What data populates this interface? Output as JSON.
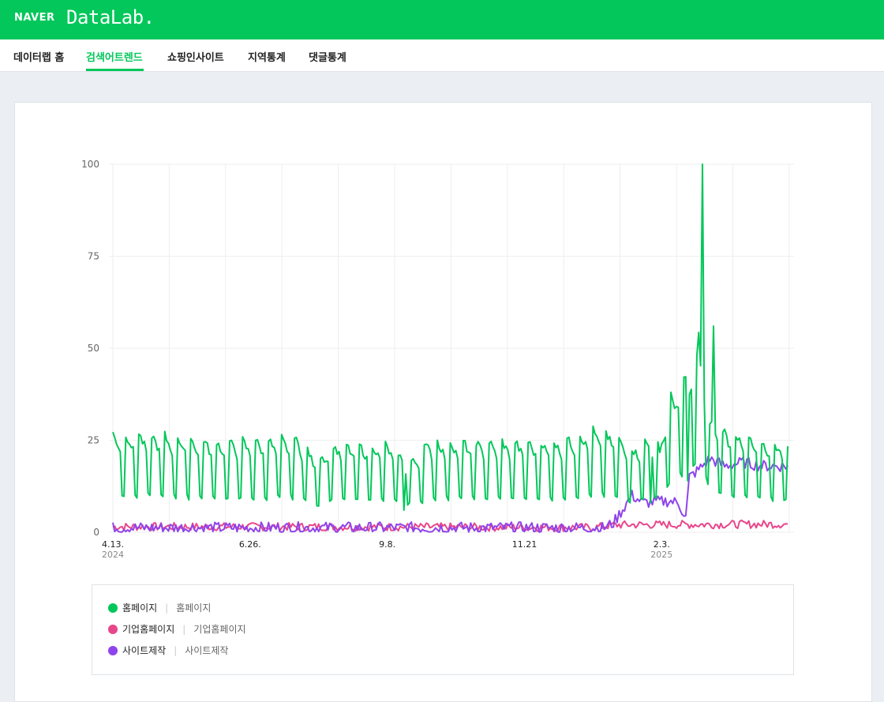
{
  "header": {
    "brand": "NAVER",
    "product": "DataLab."
  },
  "nav": {
    "items": [
      {
        "label": "데이터랩 홈"
      },
      {
        "label": "검색어트렌드"
      },
      {
        "label": "쇼핑인사이트"
      },
      {
        "label": "지역통계"
      },
      {
        "label": "댓글통계"
      }
    ],
    "active_index": 1
  },
  "colors": {
    "green": "#03c75a",
    "pink": "#e8468b",
    "purple": "#8f43ec",
    "grid": "#eeeeee"
  },
  "legend": [
    {
      "name": "홈페이지",
      "keywords": "홈페이지",
      "color": "#03c75a"
    },
    {
      "name": "기업홈페이지",
      "keywords": "기업홈페이지",
      "color": "#e8468b"
    },
    {
      "name": "사이트제작",
      "keywords": "사이트제작",
      "color": "#8f43ec"
    }
  ],
  "chart_data": {
    "type": "line",
    "x_start": "2024-04-13",
    "x_end": "2025-04-12",
    "days": 365,
    "ylim": [
      0,
      100
    ],
    "yticks": [
      0,
      25,
      50,
      75,
      100
    ],
    "ytick_labels": [
      "0",
      "25",
      "50",
      "75",
      "100"
    ],
    "xticks": [
      {
        "day": 0,
        "label": "4.13.",
        "year": "2024"
      },
      {
        "day": 74,
        "label": "6.26.",
        "year": ""
      },
      {
        "day": 148,
        "label": "9.8.",
        "year": ""
      },
      {
        "day": 222,
        "label": "11.21",
        "year": ""
      },
      {
        "day": 296,
        "label": "2.3.",
        "year": "2025"
      }
    ],
    "series": [
      {
        "name": "홈페이지",
        "color": "#03c75a",
        "weekly_pattern": [
          1.0,
          0.96,
          0.92,
          0.88,
          0.83,
          0.38,
          0.36
        ],
        "weekly_base": [
          [
            0,
            27
          ],
          [
            18,
            27
          ],
          [
            40,
            26
          ],
          [
            60,
            25
          ],
          [
            100,
            26
          ],
          [
            110,
            20
          ],
          [
            118,
            24
          ],
          [
            150,
            24
          ],
          [
            160,
            19
          ],
          [
            170,
            25
          ],
          [
            220,
            25
          ],
          [
            240,
            25
          ],
          [
            260,
            28
          ],
          [
            270,
            27
          ],
          [
            280,
            23
          ],
          [
            290,
            26
          ],
          [
            295,
            24
          ],
          [
            300,
            36
          ],
          [
            312,
            46
          ],
          [
            316,
            55
          ],
          [
            322,
            31
          ],
          [
            332,
            28
          ],
          [
            342,
            26
          ],
          [
            350,
            25
          ],
          [
            365,
            24
          ]
        ],
        "spikes": [
          {
            "day": 318,
            "value": 100
          },
          {
            "day": 324,
            "value": 56
          },
          {
            "day": 315,
            "value": 48
          }
        ],
        "dips": [
          {
            "day": 157,
            "value": 6
          },
          {
            "day": 160,
            "value": 8
          },
          {
            "day": 290,
            "value": 8
          },
          {
            "day": 310,
            "value": 14
          }
        ]
      },
      {
        "name": "기업홈페이지",
        "color": "#e8468b",
        "noise_base": [
          [
            0,
            1.5
          ],
          [
            100,
            1.5
          ],
          [
            260,
            1.3
          ],
          [
            270,
            2.0
          ],
          [
            365,
            2.2
          ]
        ],
        "noise_amp": 1.1
      },
      {
        "name": "사이트제작",
        "color": "#8f43ec",
        "noise_base": [
          [
            0,
            1.2
          ],
          [
            265,
            1.2
          ],
          [
            270,
            2.5
          ],
          [
            276,
            7
          ],
          [
            280,
            10
          ],
          [
            286,
            8
          ],
          [
            300,
            8.5
          ],
          [
            305,
            8
          ],
          [
            309,
            4
          ],
          [
            311,
            15
          ],
          [
            316,
            17
          ],
          [
            322,
            20
          ],
          [
            330,
            18
          ],
          [
            340,
            19
          ],
          [
            350,
            18
          ],
          [
            365,
            18
          ]
        ],
        "noise_amp": 1.6
      }
    ]
  }
}
